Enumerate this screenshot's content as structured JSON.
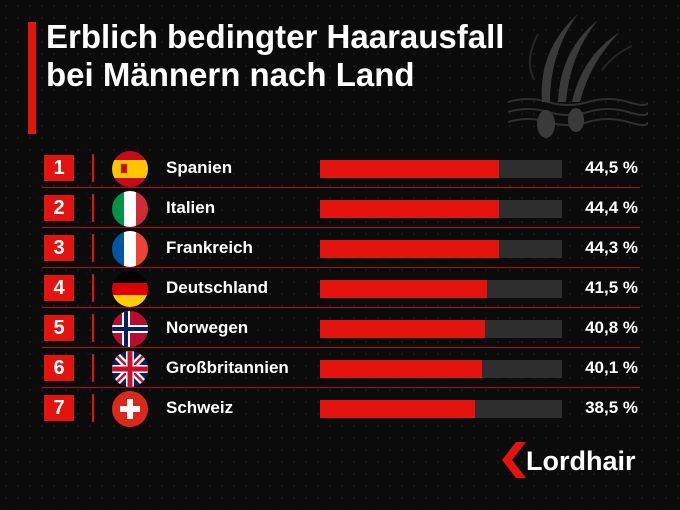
{
  "title": "Erblich bedingter Haarausfall bei Männern nach Land",
  "brand": "Lordhair",
  "colors": {
    "accent": "#e3140f",
    "track": "#2e2e2e",
    "background": "#0b0b0b"
  },
  "chart_data": {
    "type": "bar",
    "title": "Erblich bedingter Haarausfall bei Männern nach Land",
    "ranks": [
      "1",
      "2",
      "3",
      "4",
      "5",
      "6",
      "7"
    ],
    "categories": [
      "Spanien",
      "Italien",
      "Frankreich",
      "Deutschland",
      "Norwegen",
      "Großbritannien",
      "Schweiz"
    ],
    "values": [
      44.5,
      44.4,
      44.3,
      41.5,
      40.8,
      40.1,
      38.5
    ],
    "value_labels": [
      "44,5 %",
      "44,4 %",
      "44,3 %",
      "41,5 %",
      "40,8 %",
      "40,1 %",
      "38,5 %"
    ],
    "flags": [
      "spain-flag-icon",
      "italy-flag-icon",
      "france-flag-icon",
      "germany-flag-icon",
      "norway-flag-icon",
      "uk-flag-icon",
      "switzerland-flag-icon"
    ],
    "xlim": [
      0,
      60
    ],
    "orientation": "horizontal",
    "grid": false,
    "legend": "none"
  }
}
